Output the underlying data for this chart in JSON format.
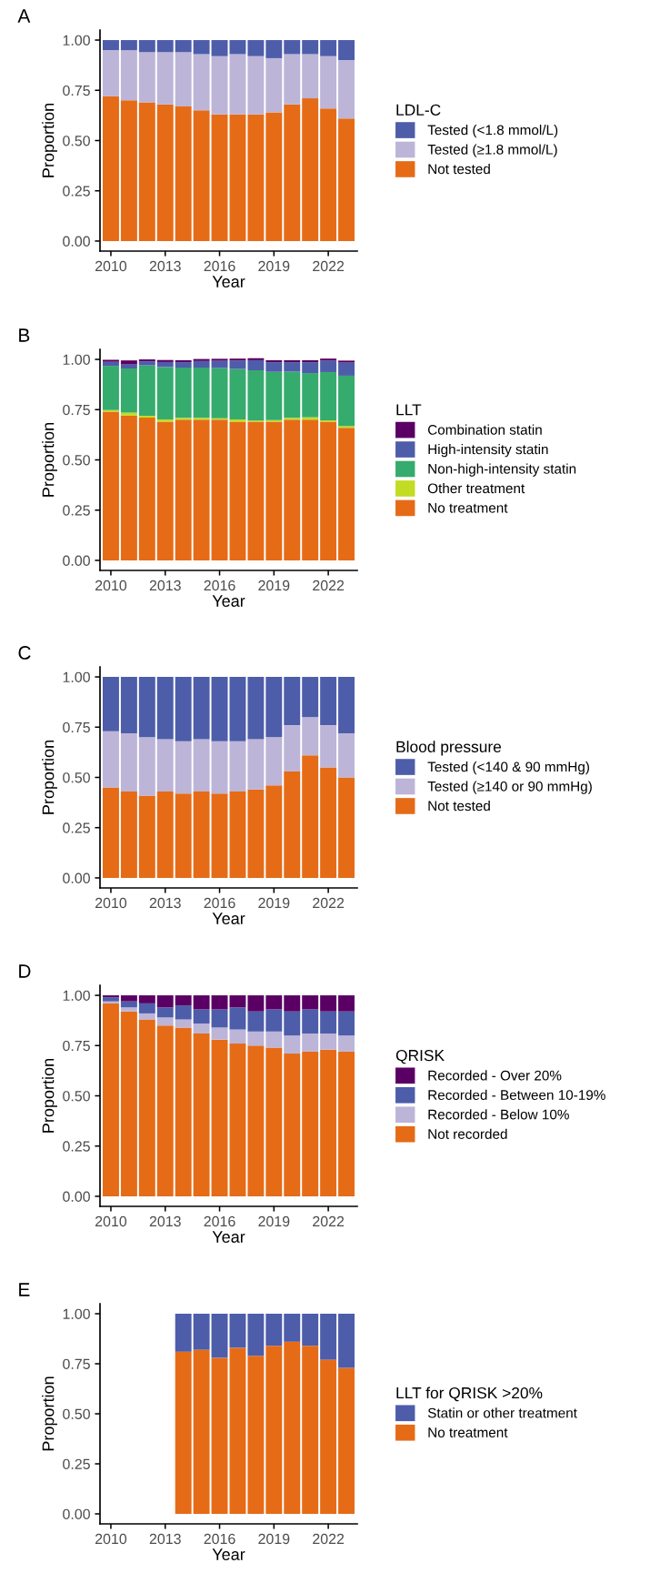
{
  "chart_data": [
    {
      "type": "bar",
      "title": "A",
      "xlabel": "Year",
      "ylabel": "Proportion",
      "legend_title": "LDL-C",
      "legend": "right",
      "stacked": true,
      "grid": false,
      "x": [
        2010,
        2011,
        2012,
        2013,
        2014,
        2015,
        2016,
        2017,
        2018,
        2019,
        2020,
        2021,
        2022,
        2023
      ],
      "xlim": [
        2009.4,
        2023.6
      ],
      "xticks": [
        2010,
        2013,
        2016,
        2019,
        2022
      ],
      "ylim": [
        -0.05,
        1.05
      ],
      "yticks": [
        {
          "value": 0,
          "label": "0.00"
        },
        {
          "value": 0.25,
          "label": "0.25"
        },
        {
          "value": 0.5,
          "label": "0.50"
        },
        {
          "value": 0.75,
          "label": "0.75"
        },
        {
          "value": 1,
          "label": "1.00"
        }
      ],
      "series": [
        {
          "name": "Not tested",
          "color": "#e66b17",
          "values": [
            0.72,
            0.7,
            0.69,
            0.68,
            0.67,
            0.65,
            0.63,
            0.63,
            0.63,
            0.64,
            0.68,
            0.71,
            0.66,
            0.61
          ]
        },
        {
          "name": "Tested (≥1.8 mmol/L)",
          "color": "#bcb5d8",
          "values": [
            0.23,
            0.25,
            0.25,
            0.26,
            0.27,
            0.28,
            0.29,
            0.3,
            0.29,
            0.27,
            0.25,
            0.22,
            0.26,
            0.29
          ]
        },
        {
          "name": "Tested (<1.8 mmol/L)",
          "color": "#4d5da9",
          "values": [
            0.05,
            0.05,
            0.06,
            0.06,
            0.06,
            0.07,
            0.08,
            0.07,
            0.08,
            0.09,
            0.07,
            0.07,
            0.08,
            0.1
          ]
        }
      ]
    },
    {
      "type": "bar",
      "title": "B",
      "xlabel": "Year",
      "ylabel": "Proportion",
      "legend_title": "LLT",
      "legend": "right",
      "stacked": true,
      "grid": false,
      "x": [
        2010,
        2011,
        2012,
        2013,
        2014,
        2015,
        2016,
        2017,
        2018,
        2019,
        2020,
        2021,
        2022,
        2023
      ],
      "xlim": [
        2009.4,
        2023.6
      ],
      "xticks": [
        2010,
        2013,
        2016,
        2019,
        2022
      ],
      "ylim": [
        -0.05,
        1.05
      ],
      "yticks": [
        {
          "value": 0,
          "label": "0.00"
        },
        {
          "value": 0.25,
          "label": "0.25"
        },
        {
          "value": 0.5,
          "label": "0.50"
        },
        {
          "value": 0.75,
          "label": "0.75"
        },
        {
          "value": 1,
          "label": "1.00"
        }
      ],
      "series": [
        {
          "name": "No treatment",
          "color": "#e66b17",
          "values": [
            0.74,
            0.72,
            0.71,
            0.69,
            0.7,
            0.7,
            0.7,
            0.69,
            0.69,
            0.69,
            0.7,
            0.7,
            0.69,
            0.66
          ]
        },
        {
          "name": "Other treatment",
          "color": "#c1dc22",
          "values": [
            0.008,
            0.015,
            0.01,
            0.012,
            0.009,
            0.009,
            0.007,
            0.012,
            0.006,
            0.008,
            0.009,
            0.012,
            0.007,
            0.009
          ]
        },
        {
          "name": "Non-high-intensity statin",
          "color": "#36ab6e",
          "values": [
            0.22,
            0.22,
            0.25,
            0.26,
            0.25,
            0.25,
            0.25,
            0.25,
            0.25,
            0.24,
            0.23,
            0.22,
            0.24,
            0.25
          ]
        },
        {
          "name": "High-intensity statin",
          "color": "#4d5da9",
          "values": [
            0.02,
            0.02,
            0.02,
            0.025,
            0.027,
            0.033,
            0.036,
            0.042,
            0.05,
            0.048,
            0.047,
            0.054,
            0.057,
            0.065
          ]
        },
        {
          "name": "Combination statin",
          "color": "#5a0064",
          "values": [
            0.01,
            0.02,
            0.01,
            0.01,
            0.01,
            0.01,
            0.01,
            0.01,
            0.01,
            0.01,
            0.01,
            0.01,
            0.01,
            0.01
          ]
        }
      ]
    },
    {
      "type": "bar",
      "title": "C",
      "xlabel": "Year",
      "ylabel": "Proportion",
      "legend_title": "Blood pressure",
      "legend": "right",
      "stacked": true,
      "grid": false,
      "x": [
        2010,
        2011,
        2012,
        2013,
        2014,
        2015,
        2016,
        2017,
        2018,
        2019,
        2020,
        2021,
        2022,
        2023
      ],
      "xlim": [
        2009.4,
        2023.6
      ],
      "xticks": [
        2010,
        2013,
        2016,
        2019,
        2022
      ],
      "ylim": [
        -0.05,
        1.05
      ],
      "yticks": [
        {
          "value": 0,
          "label": "0.00"
        },
        {
          "value": 0.25,
          "label": "0.25"
        },
        {
          "value": 0.5,
          "label": "0.50"
        },
        {
          "value": 0.75,
          "label": "0.75"
        },
        {
          "value": 1,
          "label": "1.00"
        }
      ],
      "series": [
        {
          "name": "Not tested",
          "color": "#e66b17",
          "values": [
            0.45,
            0.43,
            0.41,
            0.43,
            0.42,
            0.43,
            0.42,
            0.43,
            0.44,
            0.46,
            0.53,
            0.61,
            0.55,
            0.5
          ]
        },
        {
          "name": "Tested (≥140 or 90 mmHg)",
          "color": "#bcb5d8",
          "values": [
            0.28,
            0.29,
            0.29,
            0.26,
            0.26,
            0.26,
            0.26,
            0.25,
            0.25,
            0.24,
            0.23,
            0.19,
            0.21,
            0.22
          ]
        },
        {
          "name": "Tested (<140 & 90 mmHg)",
          "color": "#4d5da9",
          "values": [
            0.27,
            0.28,
            0.3,
            0.31,
            0.32,
            0.31,
            0.32,
            0.32,
            0.31,
            0.3,
            0.24,
            0.2,
            0.24,
            0.28
          ]
        }
      ]
    },
    {
      "type": "bar",
      "title": "D",
      "xlabel": "Year",
      "ylabel": "Proportion",
      "legend_title": "QRISK",
      "legend": "right",
      "stacked": true,
      "grid": false,
      "x": [
        2010,
        2011,
        2012,
        2013,
        2014,
        2015,
        2016,
        2017,
        2018,
        2019,
        2020,
        2021,
        2022,
        2023
      ],
      "xlim": [
        2009.4,
        2023.6
      ],
      "xticks": [
        2010,
        2013,
        2016,
        2019,
        2022
      ],
      "ylim": [
        -0.05,
        1.05
      ],
      "yticks": [
        {
          "value": 0,
          "label": "0.00"
        },
        {
          "value": 0.25,
          "label": "0.25"
        },
        {
          "value": 0.5,
          "label": "0.50"
        },
        {
          "value": 0.75,
          "label": "0.75"
        },
        {
          "value": 1,
          "label": "1.00"
        }
      ],
      "series": [
        {
          "name": "Not recorded",
          "color": "#e66b17",
          "values": [
            0.96,
            0.92,
            0.88,
            0.85,
            0.84,
            0.81,
            0.78,
            0.76,
            0.75,
            0.74,
            0.71,
            0.72,
            0.73,
            0.72
          ]
        },
        {
          "name": "Recorded - Below 10%",
          "color": "#bcb5d8",
          "values": [
            0.01,
            0.02,
            0.03,
            0.04,
            0.04,
            0.05,
            0.06,
            0.07,
            0.07,
            0.08,
            0.09,
            0.09,
            0.08,
            0.08
          ]
        },
        {
          "name": "Recorded - Between 10-19%",
          "color": "#4d5da9",
          "values": [
            0.02,
            0.03,
            0.05,
            0.05,
            0.07,
            0.07,
            0.09,
            0.11,
            0.1,
            0.11,
            0.12,
            0.12,
            0.11,
            0.12
          ]
        },
        {
          "name": "Recorded - Over 20%",
          "color": "#5a0064",
          "values": [
            0.01,
            0.03,
            0.04,
            0.06,
            0.05,
            0.07,
            0.07,
            0.06,
            0.08,
            0.07,
            0.08,
            0.07,
            0.08,
            0.08
          ]
        }
      ]
    },
    {
      "type": "bar",
      "title": "E",
      "xlabel": "Year",
      "ylabel": "Proportion",
      "legend_title": "LLT for QRISK >20%",
      "legend": "right",
      "stacked": true,
      "grid": false,
      "x": [
        2014,
        2015,
        2016,
        2017,
        2018,
        2019,
        2020,
        2021,
        2022,
        2023
      ],
      "xlim": [
        2009.4,
        2023.6
      ],
      "xticks": [
        2010,
        2013,
        2016,
        2019,
        2022
      ],
      "ylim": [
        -0.05,
        1.05
      ],
      "yticks": [
        {
          "value": 0,
          "label": "0.00"
        },
        {
          "value": 0.25,
          "label": "0.25"
        },
        {
          "value": 0.5,
          "label": "0.50"
        },
        {
          "value": 0.75,
          "label": "0.75"
        },
        {
          "value": 1,
          "label": "1.00"
        }
      ],
      "series": [
        {
          "name": "No treatment",
          "color": "#e66b17",
          "values": [
            0.81,
            0.82,
            0.78,
            0.83,
            0.79,
            0.84,
            0.86,
            0.84,
            0.77,
            0.73
          ]
        },
        {
          "name": "Statin or other treatment",
          "color": "#4d5da9",
          "values": [
            0.19,
            0.18,
            0.22,
            0.17,
            0.21,
            0.16,
            0.14,
            0.16,
            0.23,
            0.27
          ]
        }
      ]
    }
  ]
}
